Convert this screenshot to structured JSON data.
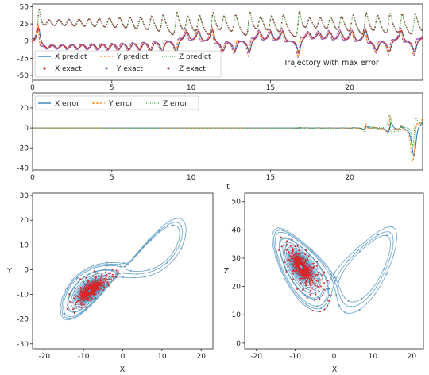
{
  "colors": {
    "x": "#1f77b4",
    "y": "#ff7f0e",
    "z": "#2ca02c",
    "exact_x": "#d62728",
    "exact_y": "#9467bd",
    "exact_z": "#8c564b",
    "phase_line": "#4a8fc0",
    "phase_point": "#d62728"
  },
  "annotation": "Trajectory with max error",
  "t_label": "t",
  "chart_data": [
    {
      "type": "line",
      "x_range": [
        0,
        24.6
      ],
      "ylim": [
        -57,
        54
      ],
      "xticks": [
        0,
        5,
        10,
        15,
        20
      ],
      "yticks": [
        50,
        25,
        0,
        -25,
        -50
      ],
      "xlabel": "",
      "ylabel": "",
      "legend": {
        "position": "bottom-left",
        "entries": [
          {
            "label": "X predict",
            "style": "solid",
            "color": "#1f77b4"
          },
          {
            "label": "Y predict",
            "style": "dashed",
            "color": "#ff7f0e"
          },
          {
            "label": "Z predict",
            "style": "dotted",
            "color": "#2ca02c"
          },
          {
            "label": "X exact",
            "style": "marker",
            "color": "#d62728"
          },
          {
            "label": "Y exact",
            "style": "marker",
            "color": "#9467bd"
          },
          {
            "label": "Z exact",
            "style": "marker",
            "color": "#8c564b"
          }
        ]
      },
      "series_note": "Lorenz system trajectory; X, Y oscillate around ~-8 then switch lobes after t~13; Z oscillates around ~25"
    },
    {
      "type": "line",
      "x_range": [
        0,
        24.6
      ],
      "ylim": [
        -42,
        35
      ],
      "xticks": [
        0,
        5,
        10,
        15,
        20
      ],
      "yticks": [
        20,
        0,
        -20,
        -40
      ],
      "xlabel": "t",
      "ylabel": "",
      "legend": {
        "position": "top-left",
        "entries": [
          {
            "label": "X error",
            "style": "solid",
            "color": "#1f77b4"
          },
          {
            "label": "Y error",
            "style": "dashed",
            "color": "#ff7f0e"
          },
          {
            "label": "Z error",
            "style": "dotted",
            "color": "#2ca02c"
          }
        ]
      },
      "series_note": "Error ~0 until t~15, then oscillations up to about +/-35"
    },
    {
      "type": "scatter",
      "xlabel": "X",
      "ylabel": "Y",
      "xlim": [
        -23,
        23
      ],
      "ylim": [
        -32,
        31
      ],
      "xticks": [
        -20,
        -10,
        0,
        10,
        20
      ],
      "yticks": [
        30,
        20,
        10,
        0,
        -10,
        -20,
        -30
      ],
      "series_note": "Lorenz attractor projection onto X-Y plane; predicted lines with exact points"
    },
    {
      "type": "scatter",
      "xlabel": "X",
      "ylabel": "Z",
      "xlim": [
        -23,
        23
      ],
      "ylim": [
        -2,
        53
      ],
      "xticks": [
        -20,
        -10,
        0,
        10,
        20
      ],
      "yticks": [
        50,
        40,
        30,
        20,
        10,
        0
      ],
      "series_note": "Lorenz attractor projection onto X-Z plane (butterfly)"
    }
  ]
}
